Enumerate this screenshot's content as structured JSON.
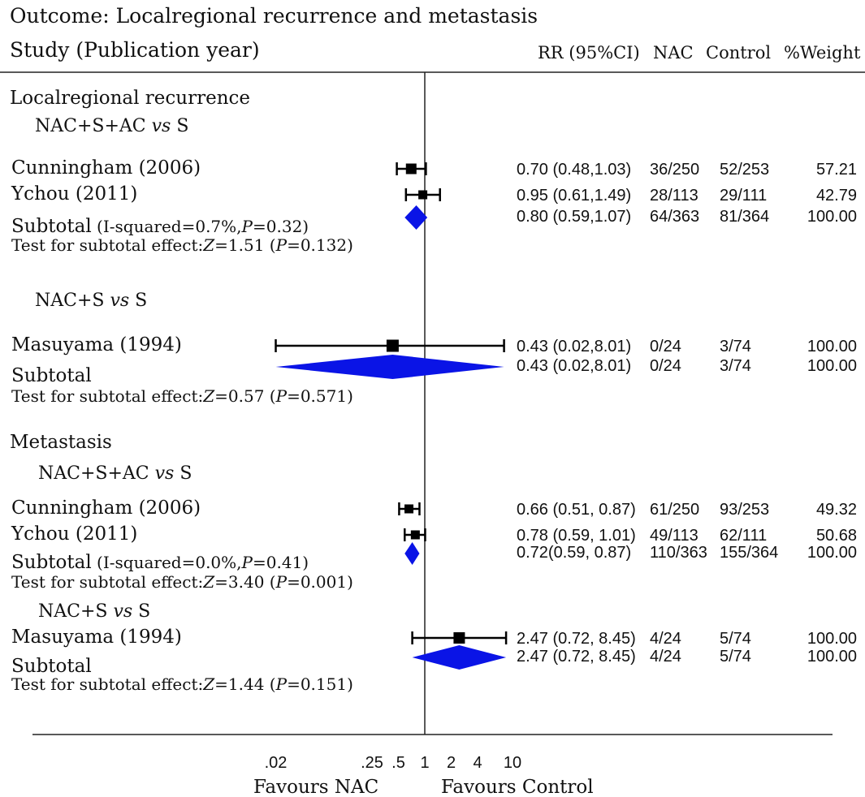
{
  "chart_data": {
    "type": "forest",
    "title": "Outcome: Localregional recurrence and metastasis",
    "study_header": "Study (Publication year)",
    "column_headers": {
      "rr": "RR (95%CI)",
      "nac": "NAC",
      "control": "Control",
      "weight": "%Weight"
    },
    "x_axis": {
      "scale": "log",
      "ticks": [
        {
          "value": 0.02,
          "label": ".02"
        },
        {
          "value": 0.25,
          "label": ".25"
        },
        {
          "value": 0.5,
          "label": ".5"
        },
        {
          "value": 1,
          "label": "1"
        },
        {
          "value": 2,
          "label": "2"
        },
        {
          "value": 4,
          "label": "4"
        },
        {
          "value": 10,
          "label": "10"
        }
      ],
      "favours_left": "Favours NAC",
      "favours_right": "Favours Control",
      "null_value": 1
    },
    "sections": [
      {
        "title": "Localregional recurrence",
        "groups": [
          {
            "label_main": "NAC+S+AC ",
            "label_vs": "vs",
            "label_tail": " S",
            "studies": [
              {
                "name": "Cunningham (2006)",
                "rr": 0.7,
                "lo": 0.48,
                "hi": 1.03,
                "weight": 57.21,
                "rr_text": "0.70 (0.48,1.03)",
                "nac": "36/250",
                "control": "52/253",
                "weight_text": "57.21"
              },
              {
                "name": "Ychou (2011)",
                "rr": 0.95,
                "lo": 0.61,
                "hi": 1.49,
                "weight": 42.79,
                "rr_text": "0.95 (0.61,1.49)",
                "nac": "28/113",
                "control": "29/111",
                "weight_text": "42.79"
              }
            ],
            "subtotal": {
              "label": "Subtotal",
              "het_prefix": "(I-squared=0.7%,",
              "het_p_label": "P",
              "het_p_value": "=0.32)",
              "rr": 0.8,
              "lo": 0.59,
              "hi": 1.07,
              "rr_text": "0.80 (0.59,1.07)",
              "nac": "64/363",
              "control": "81/364",
              "weight_text": "100.00"
            },
            "test": {
              "prefix": "Test for subtotal effect:",
              "z_label": "Z",
              "z_value": "=1.51 (",
              "p_label": "P",
              "p_value": "=0.132)"
            }
          },
          {
            "label_main": "NAC+S ",
            "label_vs": "vs",
            "label_tail": " S",
            "studies": [
              {
                "name": "Masuyama (1994)",
                "rr": 0.43,
                "lo": 0.02,
                "hi": 8.01,
                "weight": 100.0,
                "rr_text": "0.43 (0.02,8.01)",
                "nac": "0/24",
                "control": "3/74",
                "weight_text": "100.00"
              }
            ],
            "subtotal": {
              "label": "Subtotal",
              "rr": 0.43,
              "lo": 0.02,
              "hi": 8.01,
              "rr_text": "0.43 (0.02,8.01)",
              "nac": "0/24",
              "control": "3/74",
              "weight_text": "100.00"
            },
            "test": {
              "prefix": "Test for subtotal effect:",
              "z_label": "Z",
              "z_value": "=0.57 (",
              "p_label": "P",
              "p_value": "=0.571)"
            }
          }
        ]
      },
      {
        "title": "Metastasis",
        "groups": [
          {
            "label_main": "NAC+S+AC ",
            "label_vs": "vs",
            "label_tail": " S",
            "studies": [
              {
                "name": "Cunningham (2006)",
                "rr": 0.66,
                "lo": 0.51,
                "hi": 0.87,
                "weight": 49.32,
                "rr_text": "0.66 (0.51, 0.87)",
                "nac": "61/250",
                "control": "93/253",
                "weight_text": "49.32"
              },
              {
                "name": "Ychou (2011)",
                "rr": 0.78,
                "lo": 0.59,
                "hi": 1.01,
                "weight": 50.68,
                "rr_text": "0.78 (0.59, 1.01)",
                "nac": "49/113",
                "control": "62/111",
                "weight_text": "50.68"
              }
            ],
            "subtotal": {
              "label": "Subtotal",
              "het_prefix": "(I-squared=0.0%,",
              "het_p_label": "P",
              "het_p_value": "=0.41)",
              "rr": 0.72,
              "lo": 0.59,
              "hi": 0.87,
              "rr_text": "0.72(0.59, 0.87)",
              "nac": "110/363",
              "control": "155/364",
              "weight_text": "100.00"
            },
            "test": {
              "prefix": "Test for subtotal effect:",
              "z_label": "Z",
              "z_value": "=3.40 (",
              "p_label": "P",
              "p_value": "=0.001)"
            }
          },
          {
            "label_main": "NAC+S ",
            "label_vs": "vs",
            "label_tail": " S",
            "studies": [
              {
                "name": "Masuyama (1994)",
                "rr": 2.47,
                "lo": 0.72,
                "hi": 8.45,
                "weight": 100.0,
                "rr_text": "2.47 (0.72, 8.45)",
                "nac": "4/24",
                "control": "5/74",
                "weight_text": "100.00"
              }
            ],
            "subtotal": {
              "label": "Subtotal",
              "rr": 2.47,
              "lo": 0.72,
              "hi": 8.45,
              "rr_text": "2.47 (0.72, 8.45)",
              "nac": "4/24",
              "control": "5/74",
              "weight_text": "100.00"
            },
            "test": {
              "prefix": "Test for subtotal effect:",
              "z_label": "Z",
              "z_value": "=1.44 (",
              "p_label": "P",
              "p_value": "=0.151)"
            }
          }
        ]
      }
    ],
    "colors": {
      "diamond": "#0a14e6",
      "marker": "#000000",
      "text": "#111111"
    }
  }
}
